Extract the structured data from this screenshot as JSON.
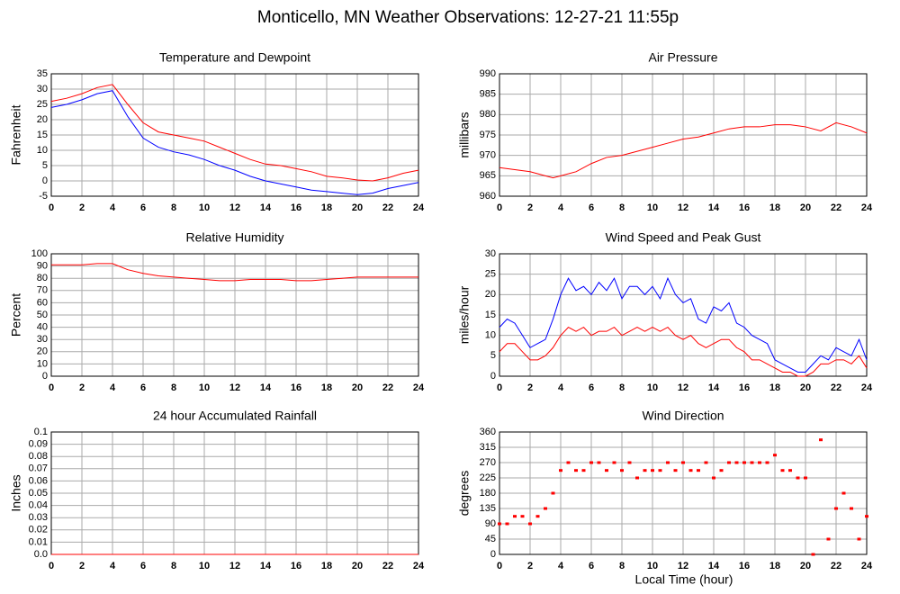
{
  "title": "Monticello, MN Weather Observations: 12-27-21 11:55p",
  "xlabel": "Local Time (hour)",
  "chart_data": [
    {
      "type": "line",
      "title": "Temperature and Dewpoint",
      "ylabel": "Fahrenheit",
      "x": [
        0,
        1,
        2,
        3,
        4,
        5,
        6,
        7,
        8,
        9,
        10,
        11,
        12,
        13,
        14,
        15,
        16,
        17,
        18,
        19,
        20,
        21,
        22,
        23,
        24
      ],
      "series": [
        {
          "color": "#ff0000",
          "values": [
            26,
            27,
            28.5,
            30.5,
            31.5,
            25,
            19,
            16,
            15,
            14,
            13,
            11,
            9,
            7,
            5.5,
            5,
            4,
            3,
            1.5,
            1,
            0.3,
            0,
            1,
            2.5,
            3.5
          ]
        },
        {
          "color": "#0000ff",
          "values": [
            24,
            25,
            26.5,
            28.5,
            29.5,
            21,
            14,
            11,
            9.5,
            8.5,
            7,
            5,
            3.5,
            1.5,
            0,
            -1,
            -2,
            -3,
            -3.5,
            -4,
            -4.5,
            -4,
            -2.5,
            -1.5,
            -0.5
          ]
        }
      ],
      "xlim": [
        0,
        24
      ],
      "xticks": [
        0,
        2,
        4,
        6,
        8,
        10,
        12,
        14,
        16,
        18,
        20,
        22,
        24
      ],
      "ylim": [
        -5,
        35
      ],
      "yticks": [
        -5,
        0,
        5,
        10,
        15,
        20,
        25,
        30,
        35
      ],
      "grid": true
    },
    {
      "type": "line",
      "title": "Air Pressure",
      "ylabel": "millibars",
      "x": [
        0,
        1,
        2,
        3,
        3.5,
        4,
        5,
        6,
        7,
        8,
        9,
        10,
        11,
        12,
        13,
        14,
        15,
        16,
        17,
        18,
        19,
        20,
        21,
        22,
        23,
        24
      ],
      "series": [
        {
          "color": "#ff0000",
          "values": [
            967,
            966.5,
            966,
            965,
            964.5,
            965,
            966,
            968,
            969.5,
            970,
            971,
            972,
            973,
            974,
            974.5,
            975.5,
            976.5,
            977,
            977,
            977.5,
            977.5,
            977,
            976,
            978,
            977,
            975.5
          ]
        }
      ],
      "xlim": [
        0,
        24
      ],
      "xticks": [
        0,
        2,
        4,
        6,
        8,
        10,
        12,
        14,
        16,
        18,
        20,
        22,
        24
      ],
      "ylim": [
        960,
        990
      ],
      "yticks": [
        960,
        965,
        970,
        975,
        980,
        985,
        990
      ],
      "grid": true
    },
    {
      "type": "line",
      "title": "Relative Humidity",
      "ylabel": "Percent",
      "x": [
        0,
        1,
        2,
        3,
        4,
        5,
        6,
        7,
        8,
        9,
        10,
        11,
        12,
        13,
        14,
        15,
        16,
        17,
        18,
        19,
        20,
        21,
        22,
        23,
        24
      ],
      "series": [
        {
          "color": "#ff0000",
          "values": [
            91,
            91,
            91,
            92,
            92,
            87,
            84,
            82,
            81,
            80,
            79,
            78,
            78,
            79,
            79,
            79,
            78,
            78,
            79,
            80,
            81,
            81,
            81,
            81,
            81
          ]
        }
      ],
      "xlim": [
        0,
        24
      ],
      "xticks": [
        0,
        2,
        4,
        6,
        8,
        10,
        12,
        14,
        16,
        18,
        20,
        22,
        24
      ],
      "ylim": [
        0,
        100
      ],
      "yticks": [
        0,
        10,
        20,
        30,
        40,
        50,
        60,
        70,
        80,
        90,
        100
      ],
      "grid": true
    },
    {
      "type": "line",
      "title": "Wind Speed and Peak Gust",
      "ylabel": "miles/hour",
      "x": [
        0,
        0.5,
        1,
        1.5,
        2,
        2.5,
        3,
        3.5,
        4,
        4.5,
        5,
        5.5,
        6,
        6.5,
        7,
        7.5,
        8,
        8.5,
        9,
        9.5,
        10,
        10.5,
        11,
        11.5,
        12,
        12.5,
        13,
        13.5,
        14,
        14.5,
        15,
        15.5,
        16,
        16.5,
        17,
        17.5,
        18,
        18.5,
        19,
        19.5,
        20,
        20.5,
        21,
        21.5,
        22,
        22.5,
        23,
        23.5,
        24
      ],
      "series": [
        {
          "color": "#0000ff",
          "values": [
            12,
            14,
            13,
            10,
            7,
            8,
            9,
            14,
            20,
            24,
            21,
            22,
            20,
            23,
            21,
            24,
            19,
            22,
            22,
            20,
            22,
            19,
            24,
            20,
            18,
            19,
            14,
            13,
            17,
            16,
            18,
            13,
            12,
            10,
            9,
            8,
            4,
            3,
            2,
            1,
            1,
            3,
            5,
            4,
            7,
            6,
            5,
            9,
            4
          ]
        },
        {
          "color": "#ff0000",
          "values": [
            6,
            8,
            8,
            6,
            4,
            4,
            5,
            7,
            10,
            12,
            11,
            12,
            10,
            11,
            11,
            12,
            10,
            11,
            12,
            11,
            12,
            11,
            12,
            10,
            9,
            10,
            8,
            7,
            8,
            9,
            9,
            7,
            6,
            4,
            4,
            3,
            2,
            1,
            1,
            0,
            0,
            1,
            3,
            3,
            4,
            4,
            3,
            5,
            2
          ]
        }
      ],
      "xlim": [
        0,
        24
      ],
      "xticks": [
        0,
        2,
        4,
        6,
        8,
        10,
        12,
        14,
        16,
        18,
        20,
        22,
        24
      ],
      "ylim": [
        0,
        30
      ],
      "yticks": [
        0,
        5,
        10,
        15,
        20,
        25,
        30
      ],
      "grid": true
    },
    {
      "type": "line",
      "title": "24 hour Accumulated Rainfall",
      "ylabel": "Inches",
      "x": [
        0,
        24
      ],
      "series": [
        {
          "color": "#ff0000",
          "values": [
            0,
            0
          ]
        }
      ],
      "xlim": [
        0,
        24
      ],
      "xticks": [
        0,
        2,
        4,
        6,
        8,
        10,
        12,
        14,
        16,
        18,
        20,
        22,
        24
      ],
      "ylim": [
        0,
        0.1
      ],
      "yticks": [
        {
          "value": 0,
          "label": "0.0"
        },
        0.01,
        0.02,
        0.03,
        0.04,
        0.05,
        0.06,
        0.07,
        0.08,
        0.09,
        0.1
      ],
      "grid": true
    },
    {
      "type": "scatter",
      "title": "Wind Direction",
      "ylabel": "degrees",
      "x": [
        0,
        0.5,
        1,
        1.5,
        2,
        2.5,
        3,
        3.5,
        4,
        4.5,
        5,
        5.5,
        6,
        6.5,
        7,
        7.5,
        8,
        8.5,
        9,
        9.5,
        10,
        10.5,
        11,
        11.5,
        12,
        12.5,
        13,
        13.5,
        14,
        14.5,
        15,
        15.5,
        16,
        16.5,
        17,
        17.5,
        18,
        18.5,
        19,
        19.5,
        20,
        20.5,
        21,
        21.5,
        22,
        22.5,
        23,
        23.5,
        24
      ],
      "series": [
        {
          "color": "#ff0000",
          "values": [
            90,
            90,
            112,
            112,
            90,
            112,
            135,
            180,
            247,
            270,
            247,
            247,
            270,
            270,
            247,
            270,
            247,
            270,
            225,
            247,
            247,
            247,
            270,
            247,
            270,
            247,
            247,
            270,
            225,
            247,
            270,
            270,
            270,
            270,
            270,
            270,
            292,
            247,
            247,
            225,
            225,
            0,
            337,
            45,
            135,
            180,
            135,
            45,
            112
          ]
        }
      ],
      "xlim": [
        0,
        24
      ],
      "xticks": [
        0,
        2,
        4,
        6,
        8,
        10,
        12,
        14,
        16,
        18,
        20,
        22,
        24
      ],
      "ylim": [
        0,
        360
      ],
      "yticks": [
        0,
        45,
        90,
        135,
        180,
        225,
        270,
        315,
        360
      ],
      "grid": true
    }
  ]
}
